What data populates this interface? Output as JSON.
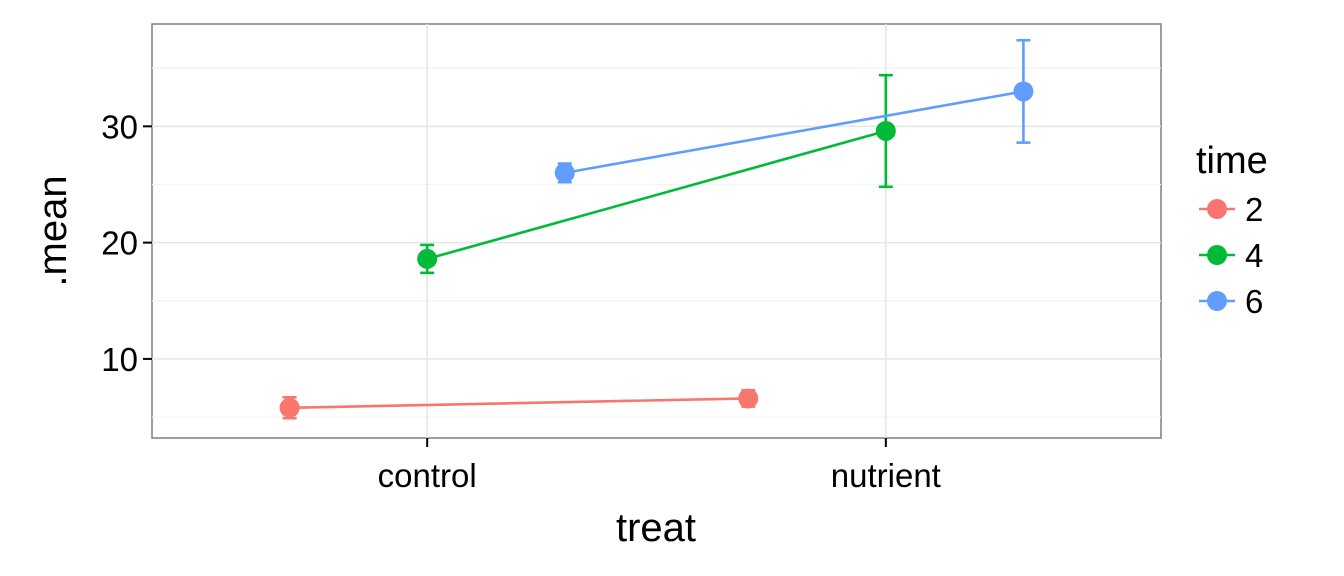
{
  "chart_data": {
    "type": "line",
    "xlabel": "treat",
    "ylabel": ".mean",
    "categories": [
      "control",
      "nutrient"
    ],
    "ylim": [
      3.2,
      38.8
    ],
    "y_ticks": [
      10,
      20,
      30
    ],
    "dodge_offsets": {
      "2": -0.3,
      "4": 0,
      "6": 0.3
    },
    "grid": true,
    "legend": {
      "title": "time",
      "position": "right"
    },
    "series": [
      {
        "name": "2",
        "color": "#F8766D",
        "points": [
          {
            "x": "control",
            "y": 5.8,
            "ymin": 4.9,
            "ymax": 6.7
          },
          {
            "x": "nutrient",
            "y": 6.6,
            "ymin": 5.9,
            "ymax": 7.3
          }
        ]
      },
      {
        "name": "4",
        "color": "#00BA38",
        "points": [
          {
            "x": "control",
            "y": 18.6,
            "ymin": 17.4,
            "ymax": 19.8
          },
          {
            "x": "nutrient",
            "y": 29.6,
            "ymin": 24.8,
            "ymax": 34.4
          }
        ]
      },
      {
        "name": "6",
        "color": "#619CFF",
        "points": [
          {
            "x": "control",
            "y": 26.0,
            "ymin": 25.2,
            "ymax": 26.8
          },
          {
            "x": "nutrient",
            "y": 33.0,
            "ymin": 28.6,
            "ymax": 37.4
          }
        ]
      }
    ]
  }
}
